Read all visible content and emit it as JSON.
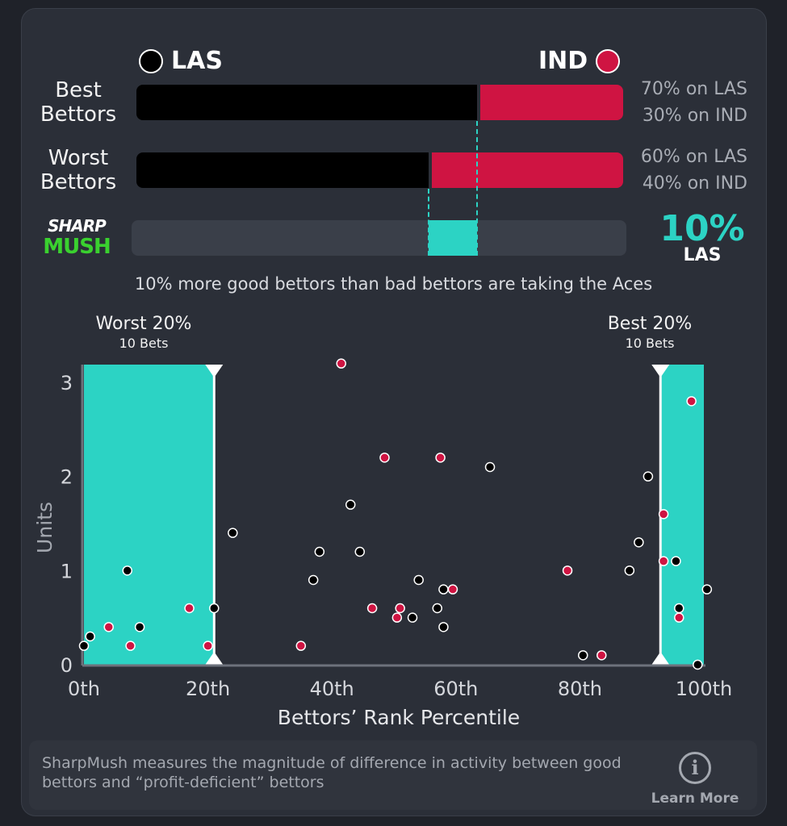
{
  "teams": {
    "left": {
      "name": "LAS",
      "color": "#000000"
    },
    "right": {
      "name": "IND",
      "color": "#cf1442"
    }
  },
  "rows": [
    {
      "label_line1": "Best",
      "label_line2": "Bettors",
      "las_pct": 70,
      "ind_pct": 30,
      "las_text": "70% on LAS",
      "ind_text": "30% on IND"
    },
    {
      "label_line1": "Worst",
      "label_line2": "Bettors",
      "las_pct": 60,
      "ind_pct": 40,
      "las_text": "60% on LAS",
      "ind_text": "40% on IND"
    }
  ],
  "sharp": {
    "logo_line1": "SHARP",
    "logo_line2": "MUSH",
    "value": "10%",
    "team": "LAS",
    "diff_from_pct": 60,
    "diff_to_pct": 70,
    "summary": "10% more good bettors than bad bettors are taking the Aces"
  },
  "zones": {
    "worst": {
      "title": "Worst 20%",
      "sub": "10 Bets",
      "from": 0,
      "to": 21
    },
    "best": {
      "title": "Best 20%",
      "sub": "10 Bets",
      "from": 93,
      "to": 100
    }
  },
  "accent_color": "#2cd3c4",
  "chart_data": {
    "type": "scatter",
    "xlabel": "Bettors’ Rank Percentile",
    "ylabel": "Units",
    "xlim": [
      0,
      100
    ],
    "ylim": [
      0,
      3.2
    ],
    "x_ticks": [
      0,
      20,
      40,
      60,
      80,
      100
    ],
    "x_tick_labels": [
      "0th",
      "20th",
      "40th",
      "60th",
      "80th",
      "100th"
    ],
    "y_ticks": [
      0,
      1,
      2,
      3
    ],
    "y_tick_labels": [
      "0",
      "1",
      "2",
      "3"
    ],
    "series": [
      {
        "name": "LAS",
        "color": "#000000",
        "points": [
          [
            0,
            0.2
          ],
          [
            1,
            0.3
          ],
          [
            7,
            1.0
          ],
          [
            9,
            0.4
          ],
          [
            21,
            0.6
          ],
          [
            24,
            1.4
          ],
          [
            37,
            0.9
          ],
          [
            38,
            1.2
          ],
          [
            43,
            1.7
          ],
          [
            44.5,
            1.2
          ],
          [
            53,
            0.5
          ],
          [
            54,
            0.9
          ],
          [
            57,
            0.6
          ],
          [
            58,
            0.8
          ],
          [
            58,
            0.4
          ],
          [
            65.5,
            2.1
          ],
          [
            80.5,
            0.1
          ],
          [
            88,
            1.0
          ],
          [
            89.5,
            1.3
          ],
          [
            91,
            2.0
          ],
          [
            95.5,
            1.1
          ],
          [
            96,
            0.6
          ],
          [
            100.5,
            0.8
          ],
          [
            99,
            0.0
          ]
        ]
      },
      {
        "name": "IND",
        "color": "#cf1442",
        "points": [
          [
            4,
            0.4
          ],
          [
            7.5,
            0.2
          ],
          [
            17,
            0.6
          ],
          [
            20,
            0.2
          ],
          [
            35,
            0.2
          ],
          [
            41.5,
            3.2
          ],
          [
            46.5,
            0.6
          ],
          [
            48.5,
            2.2
          ],
          [
            50.5,
            0.5
          ],
          [
            51,
            0.6
          ],
          [
            57.5,
            2.2
          ],
          [
            59.5,
            0.8
          ],
          [
            78,
            1.0
          ],
          [
            83.5,
            0.1
          ],
          [
            93.5,
            1.6
          ],
          [
            93.5,
            1.1
          ],
          [
            96,
            0.5
          ],
          [
            98,
            2.8
          ]
        ]
      }
    ]
  },
  "footer": {
    "text": "SharpMush measures the magnitude of difference in activity between good bettors and “profit-deficient” bettors",
    "learn_more": "Learn More",
    "info_icon": "i"
  }
}
